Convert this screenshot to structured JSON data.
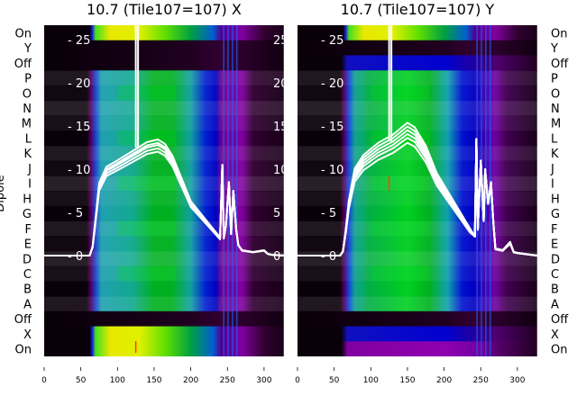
{
  "chart_data": [
    {
      "type": "heatmap",
      "title": "10.7 (Tile107=107) X",
      "ylabel": "Dipole",
      "row_labels": [
        "On",
        "Y",
        "Off",
        "P",
        "O",
        "N",
        "M",
        "L",
        "K",
        "J",
        "I",
        "H",
        "G",
        "F",
        "E",
        "D",
        "C",
        "B",
        "A",
        "Off",
        "X",
        "On"
      ],
      "row_palettes": [
        "on",
        "off",
        "off",
        "main",
        "main",
        "main",
        "main",
        "main",
        "main",
        "main",
        "main",
        "main",
        "main",
        "main",
        "main",
        "main",
        "main",
        "main",
        "main",
        "off",
        "on",
        "on"
      ],
      "xlim": [
        0,
        327
      ],
      "x_ticks": [
        "0",
        "50",
        "100",
        "150",
        "200",
        "250",
        "300"
      ],
      "overlay_yticks": [
        "25",
        "20",
        "15",
        "10",
        "5",
        "0"
      ],
      "overlay_ylim": [
        -11.5,
        26.8
      ],
      "overlay_line": {
        "type": "line",
        "x": [
          0,
          62,
          66,
          70,
          75,
          85,
          100,
          120,
          140,
          155,
          165,
          175,
          190,
          200,
          215,
          230,
          240,
          243,
          245,
          248,
          252,
          255,
          258,
          262,
          265,
          270,
          285,
          300,
          305,
          310,
          327
        ],
        "y": [
          0,
          0,
          1,
          4,
          8,
          9.8,
          10.5,
          11.5,
          12.5,
          12.8,
          12.3,
          11,
          8,
          6,
          4.5,
          3,
          2,
          10.5,
          2,
          3.5,
          8.5,
          2.5,
          7.5,
          3,
          1.2,
          0.6,
          0.4,
          0.6,
          0.2,
          0.1,
          0
        ],
        "spike_x": 125,
        "spike_y": 27,
        "scales": [
          0.94,
          0.97,
          1.0,
          1.02,
          1.05
        ]
      }
    },
    {
      "type": "heatmap",
      "title": "10.7 (Tile107=107) Y",
      "row_labels": [
        "On",
        "Y",
        "Off",
        "P",
        "O",
        "N",
        "M",
        "L",
        "K",
        "J",
        "I",
        "H",
        "G",
        "F",
        "E",
        "D",
        "C",
        "B",
        "A",
        "Off",
        "X",
        "On"
      ],
      "row_palettes": [
        "on",
        "off",
        "blue",
        "main",
        "main",
        "main",
        "main",
        "main",
        "main",
        "main",
        "main",
        "main",
        "main",
        "main",
        "main",
        "main",
        "main",
        "main",
        "main",
        "off",
        "blue",
        "purple"
      ],
      "xlim": [
        0,
        327
      ],
      "x_ticks": [
        "0",
        "50",
        "100",
        "150",
        "200",
        "250",
        "300"
      ],
      "overlay_yticks": [
        "25",
        "20",
        "15",
        "10",
        "5",
        "0"
      ],
      "overlay_ylim": [
        -11.5,
        26.8
      ],
      "overlay_line": {
        "type": "line",
        "x": [
          0,
          58,
          62,
          66,
          70,
          78,
          90,
          110,
          130,
          150,
          160,
          175,
          190,
          205,
          220,
          235,
          242,
          244,
          246,
          250,
          254,
          256,
          260,
          264,
          267,
          270,
          280,
          290,
          295,
          300,
          327
        ],
        "y": [
          0,
          0,
          0.5,
          3,
          6,
          9.5,
          11,
          12.3,
          13.2,
          14.5,
          14,
          12,
          9,
          7,
          5,
          3,
          2.2,
          13.5,
          3,
          11,
          4,
          10,
          6,
          8.5,
          4,
          0.8,
          0.6,
          1.5,
          0.4,
          0.3,
          0
        ],
        "spike_x": 125,
        "spike_y": 27,
        "scales": [
          0.9,
          0.94,
          0.97,
          1.0,
          1.03,
          1.06
        ]
      }
    }
  ],
  "palettes": {
    "main_x": [
      [
        0,
        "#0a000a"
      ],
      [
        58,
        "#0a000a"
      ],
      [
        64,
        "#500060"
      ],
      [
        70,
        "#1a40d0"
      ],
      [
        78,
        "#20a0b0"
      ],
      [
        120,
        "#12a890"
      ],
      [
        150,
        "#00b020"
      ],
      [
        175,
        "#00b020"
      ],
      [
        200,
        "#10a0a0"
      ],
      [
        220,
        "#0020d0"
      ],
      [
        235,
        "#0000c0"
      ],
      [
        242,
        "#700090"
      ],
      [
        270,
        "#8000a0"
      ],
      [
        285,
        "#300030"
      ],
      [
        327,
        "#180018"
      ]
    ],
    "main_y": [
      [
        0,
        "#0a000a"
      ],
      [
        58,
        "#0a000a"
      ],
      [
        64,
        "#500060"
      ],
      [
        70,
        "#1040e0"
      ],
      [
        78,
        "#10a090"
      ],
      [
        100,
        "#00b040"
      ],
      [
        150,
        "#00d020"
      ],
      [
        180,
        "#00b020"
      ],
      [
        205,
        "#10a0b0"
      ],
      [
        225,
        "#0010d0"
      ],
      [
        240,
        "#0000c0"
      ],
      [
        270,
        "#7000a0"
      ],
      [
        285,
        "#400050"
      ],
      [
        327,
        "#180018"
      ]
    ],
    "on": [
      [
        0,
        "#0a000a"
      ],
      [
        62,
        "#0a000a"
      ],
      [
        66,
        "#2020e0"
      ],
      [
        70,
        "#40e020"
      ],
      [
        90,
        "#e8e800"
      ],
      [
        130,
        "#e0f000"
      ],
      [
        165,
        "#60e000"
      ],
      [
        200,
        "#00a040"
      ],
      [
        230,
        "#0060d0"
      ],
      [
        242,
        "#500090"
      ],
      [
        270,
        "#8000a0"
      ],
      [
        300,
        "#300030"
      ],
      [
        327,
        "#180018"
      ]
    ],
    "off": [
      [
        0,
        "#080008"
      ],
      [
        100,
        "#120012"
      ],
      [
        200,
        "#200020"
      ],
      [
        250,
        "#350035"
      ],
      [
        327,
        "#100010"
      ]
    ],
    "blue": [
      [
        0,
        "#0a000a"
      ],
      [
        60,
        "#0a000a"
      ],
      [
        68,
        "#1010c0"
      ],
      [
        200,
        "#0000d0"
      ],
      [
        240,
        "#2000a0"
      ],
      [
        270,
        "#500070"
      ],
      [
        327,
        "#200020"
      ]
    ],
    "purple": [
      [
        0,
        "#0a000a"
      ],
      [
        60,
        "#0a000a"
      ],
      [
        68,
        "#8000a0"
      ],
      [
        200,
        "#9000b0"
      ],
      [
        250,
        "#7000a0"
      ],
      [
        280,
        "#500060"
      ],
      [
        327,
        "#200020"
      ]
    ]
  },
  "colors": {
    "line": "#ffffff",
    "spike_marker": "#ff4000"
  }
}
